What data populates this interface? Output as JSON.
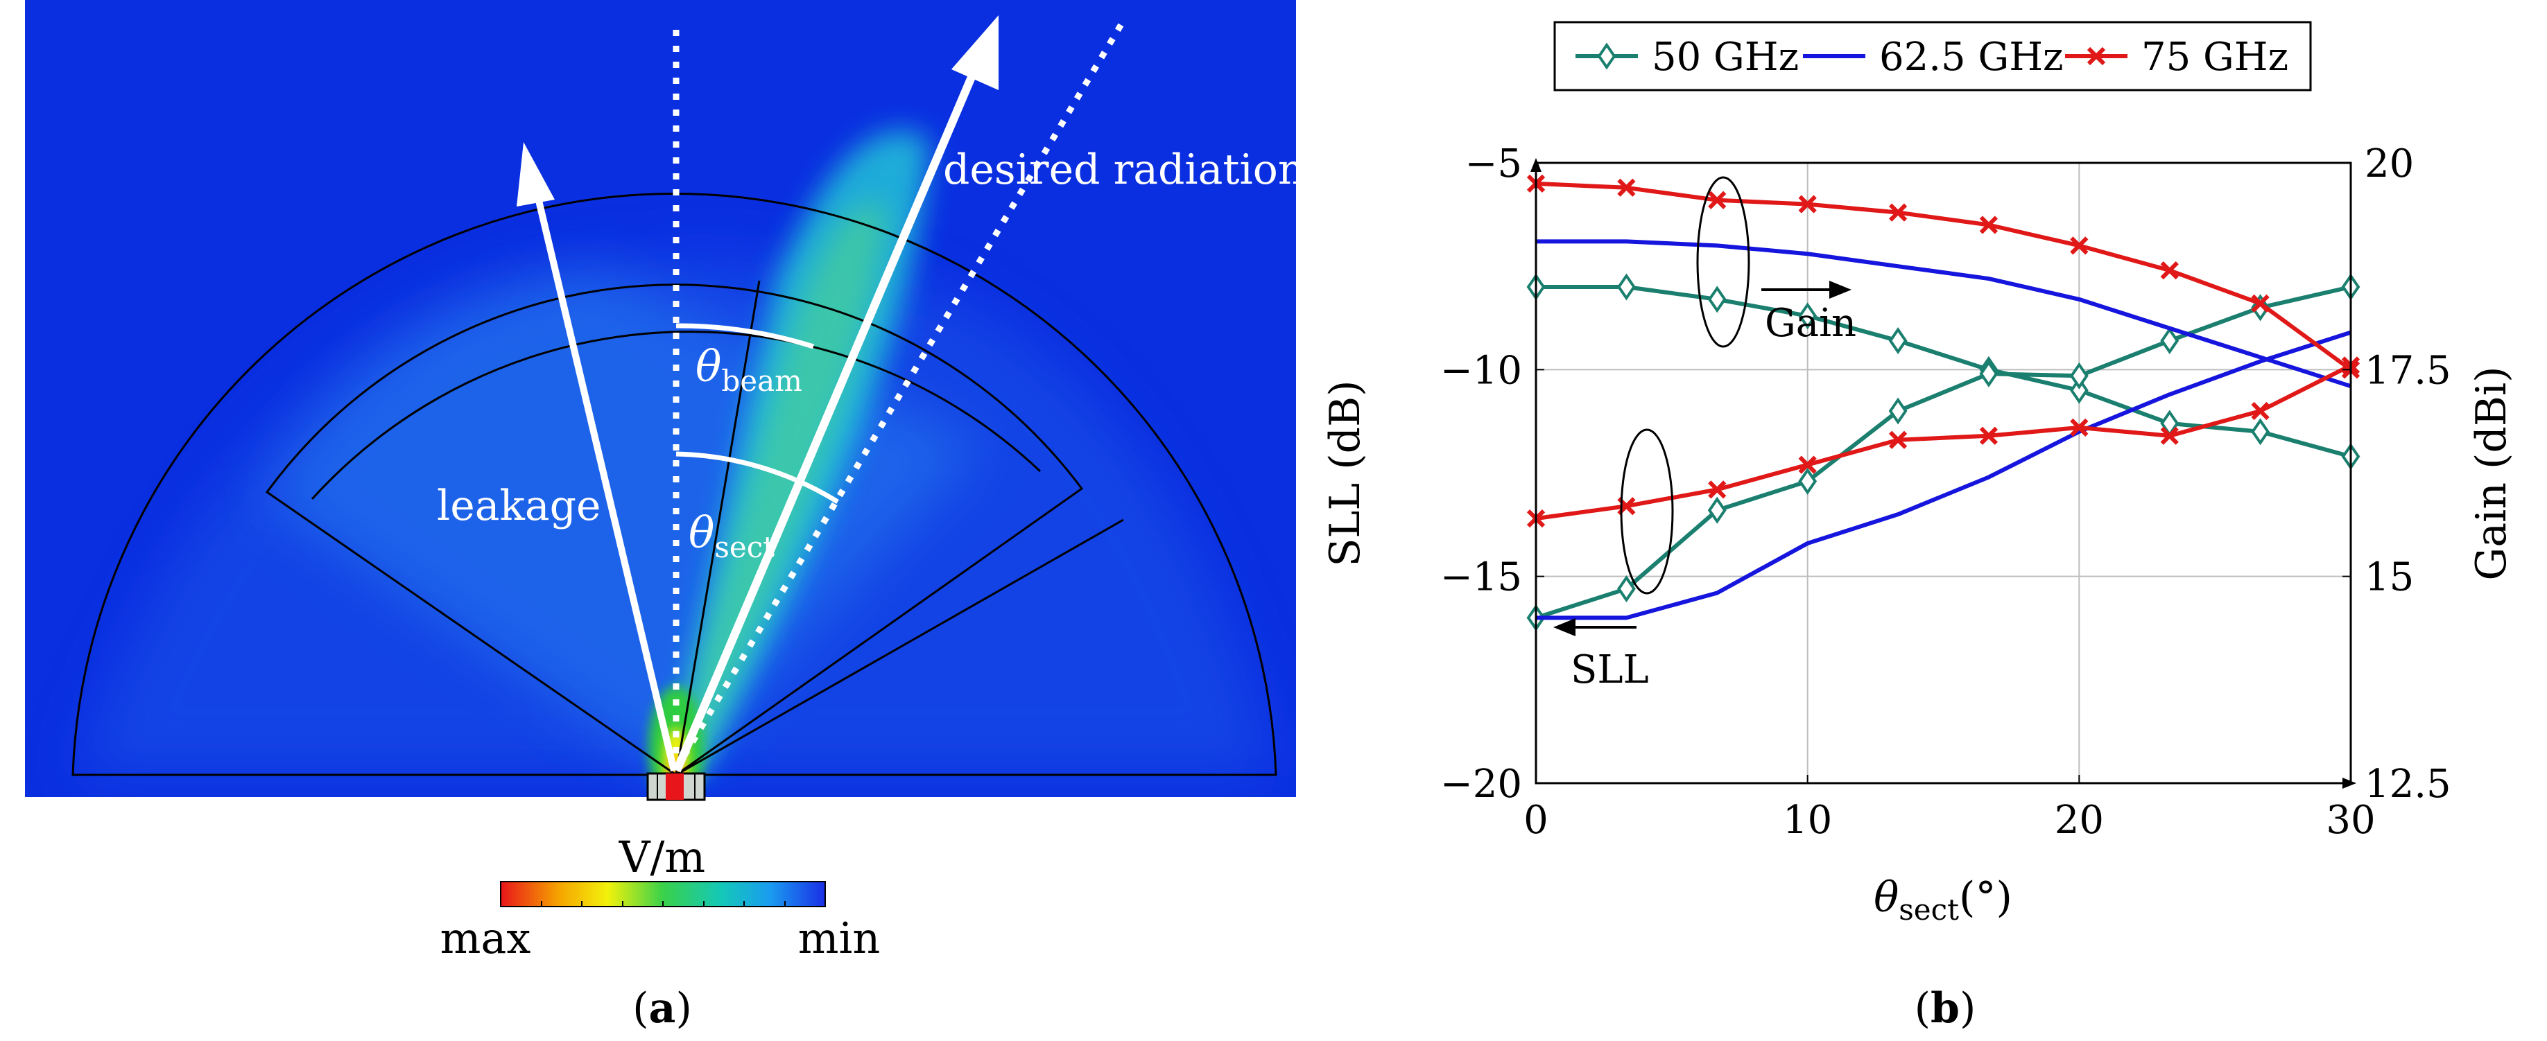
{
  "panel_a": {
    "caption_letter": "a",
    "label_leakage": "leakage",
    "label_desired": "desired radiation",
    "theta_beam_main": "θ",
    "theta_beam_sub": "beam",
    "theta_sect_main": "θ",
    "theta_sect_sub": "sect",
    "colorbar_unit": "V/m",
    "colorbar_max": "max",
    "colorbar_min": "min",
    "colors": {
      "field_background": "#0a2fe0",
      "arrow": "#ffffff",
      "outline": "#000000"
    }
  },
  "panel_b": {
    "caption_letter": "b",
    "annotation_gain": "Gain",
    "annotation_sll": "SLL"
  },
  "chart_data": {
    "type": "line",
    "xlabel_main": "θ",
    "xlabel_sub": "sect",
    "xlabel_unit": "(°)",
    "ylabel_left": "SLL (dB)",
    "ylabel_right": "Gain (dBi)",
    "xlim": [
      0,
      30
    ],
    "ylim_left": [
      -20,
      -5
    ],
    "ylim_right": [
      12.5,
      20
    ],
    "xticks": [
      0,
      10,
      20,
      30
    ],
    "yticks_left": [
      -20,
      -15,
      -10,
      -5
    ],
    "yticks_right": [
      12.5,
      15,
      17.5,
      20
    ],
    "grid": true,
    "legend_position": "top",
    "x": [
      0,
      3.33,
      6.67,
      10,
      13.33,
      16.67,
      20,
      23.33,
      26.67,
      30
    ],
    "series": [
      {
        "name": "50 GHz",
        "color": "#1a7f6e",
        "marker": "diamond",
        "axis": "right",
        "quantity": "Gain",
        "values": [
          18.5,
          18.5,
          18.35,
          18.15,
          17.85,
          17.5,
          17.25,
          16.85,
          16.75,
          16.45
        ]
      },
      {
        "name": "50 GHz",
        "color": "#1a7f6e",
        "marker": "diamond",
        "axis": "left",
        "quantity": "SLL",
        "values": [
          -16.0,
          -15.3,
          -13.4,
          -12.7,
          -11.0,
          -10.1,
          -10.15,
          -9.3,
          -8.5,
          -8.0
        ]
      },
      {
        "name": "62.5 GHz",
        "color": "#1515dd",
        "marker": "none",
        "axis": "right",
        "quantity": "Gain",
        "values": [
          19.05,
          19.05,
          19.0,
          18.9,
          18.75,
          18.6,
          18.35,
          18.0,
          17.65,
          17.3
        ]
      },
      {
        "name": "62.5 GHz",
        "color": "#1515dd",
        "marker": "none",
        "axis": "left",
        "quantity": "SLL",
        "values": [
          -16.0,
          -16.0,
          -15.4,
          -14.2,
          -13.5,
          -12.6,
          -11.5,
          -10.6,
          -9.8,
          -9.1
        ]
      },
      {
        "name": "75 GHz",
        "color": "#e01818",
        "marker": "cross",
        "axis": "right",
        "quantity": "Gain",
        "values": [
          19.75,
          19.7,
          19.55,
          19.5,
          19.4,
          19.25,
          19.0,
          18.7,
          18.3,
          17.5
        ]
      },
      {
        "name": "75 GHz",
        "color": "#e01818",
        "marker": "cross",
        "axis": "left",
        "quantity": "SLL",
        "values": [
          -13.6,
          -13.3,
          -12.9,
          -12.3,
          -11.7,
          -11.6,
          -11.4,
          -11.6,
          -11.0,
          -9.9
        ]
      }
    ],
    "legend": [
      {
        "label": "50 GHz",
        "color": "#1a7f6e",
        "marker": "diamond"
      },
      {
        "label": "62.5 GHz",
        "color": "#1515dd",
        "marker": "none"
      },
      {
        "label": "75 GHz",
        "color": "#e01818",
        "marker": "cross"
      }
    ]
  }
}
